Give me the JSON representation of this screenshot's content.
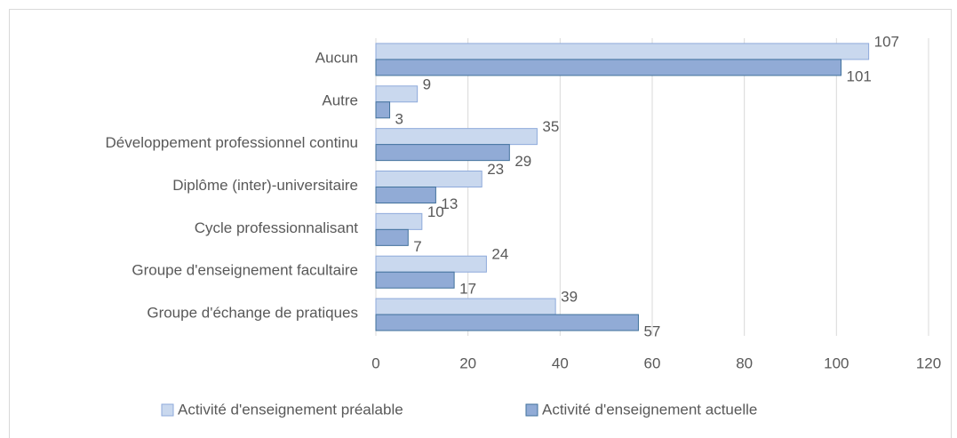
{
  "chart_data": {
    "type": "bar",
    "orientation": "horizontal",
    "categories": [
      "Aucun",
      "Autre",
      "Développement professionnel continu",
      "Diplôme (inter)-universitaire",
      "Cycle professionnalisant",
      "Groupe d'enseignement facultaire",
      "Groupe d'échange de pratiques"
    ],
    "series": [
      {
        "name": "Activité d'enseignement préalable",
        "color": "#c9d8ee",
        "values": [
          107,
          9,
          35,
          23,
          10,
          24,
          39
        ]
      },
      {
        "name": "Activité d'enseignement actuelle",
        "color": "#91abd6",
        "values": [
          101,
          3,
          29,
          13,
          7,
          17,
          57
        ]
      }
    ],
    "xlim": [
      0,
      120
    ],
    "xticks": [
      0,
      20,
      40,
      60,
      80,
      100,
      120
    ],
    "grid": true,
    "legend": "bottom"
  }
}
